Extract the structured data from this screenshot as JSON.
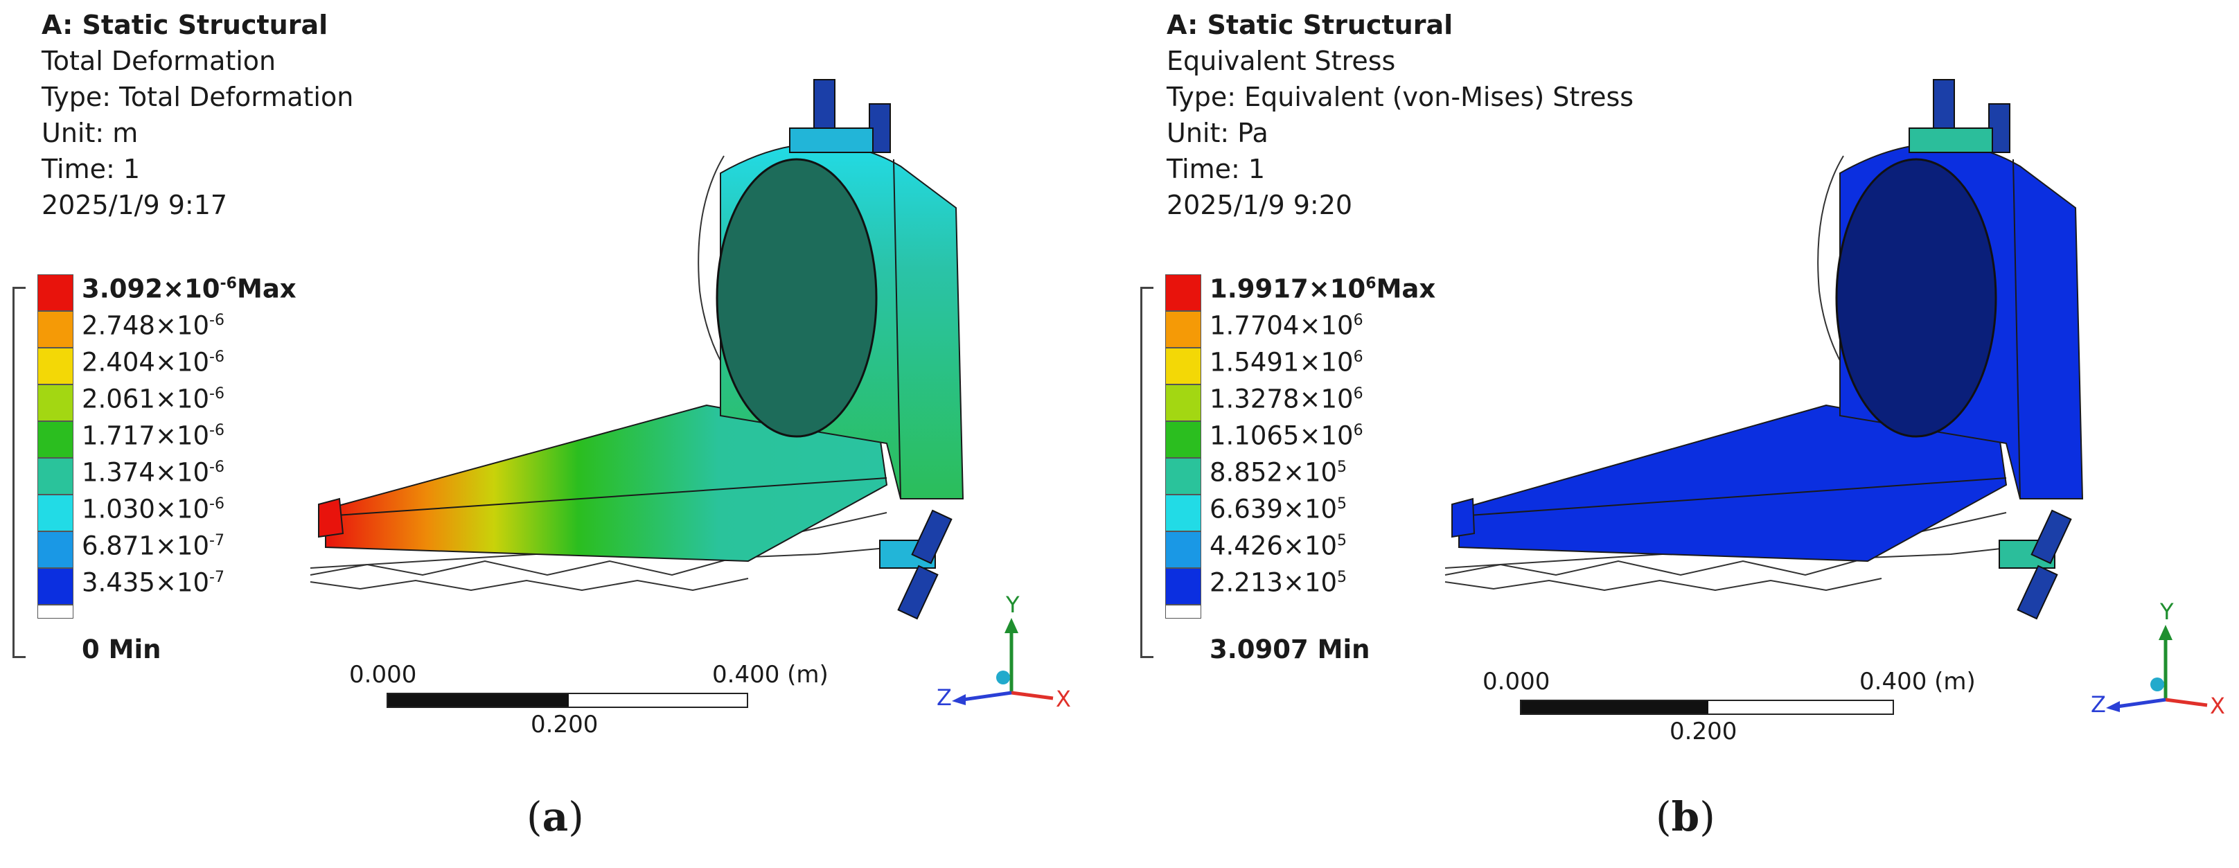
{
  "panels": [
    {
      "id": "a",
      "header": {
        "title": "A: Static Structural",
        "result": "Total Deformation",
        "type": "Type: Total Deformation",
        "unit": "Unit: m",
        "time": "Time: 1",
        "datetime": "2025/1/9 9:17"
      },
      "legend": {
        "max": {
          "mant": "3.092",
          "base": "×10",
          "exp": "-6",
          "suffix": "Max"
        },
        "levels": [
          {
            "mant": "2.748",
            "base": "×10",
            "exp": "-6"
          },
          {
            "mant": "2.404",
            "base": "×10",
            "exp": "-6"
          },
          {
            "mant": "2.061",
            "base": "×10",
            "exp": "-6"
          },
          {
            "mant": "1.717",
            "base": "×10",
            "exp": "-6"
          },
          {
            "mant": "1.374",
            "base": "×10",
            "exp": "-6"
          },
          {
            "mant": "1.030",
            "base": "×10",
            "exp": "-6"
          },
          {
            "mant": "6.871",
            "base": "×10",
            "exp": "-7"
          },
          {
            "mant": "3.435",
            "base": "×10",
            "exp": "-7"
          }
        ],
        "min": "0 Min"
      },
      "scale": {
        "left": "0.000",
        "mid": "0.200",
        "right": "0.400 (m)"
      },
      "caption": "a"
    },
    {
      "id": "b",
      "header": {
        "title": "A: Static Structural",
        "result": "Equivalent Stress",
        "type": "Type: Equivalent (von-Mises) Stress",
        "unit": "Unit: Pa",
        "time": "Time: 1",
        "datetime": "2025/1/9 9:20"
      },
      "legend": {
        "max": {
          "mant": "1.9917",
          "base": "×10",
          "exp": "6",
          "suffix": "Max"
        },
        "levels": [
          {
            "mant": "1.7704",
            "base": "×10",
            "exp": "6"
          },
          {
            "mant": "1.5491",
            "base": "×10",
            "exp": "6"
          },
          {
            "mant": "1.3278",
            "base": "×10",
            "exp": "6"
          },
          {
            "mant": "1.1065",
            "base": "×10",
            "exp": "6"
          },
          {
            "mant": "8.852",
            "base": "×10",
            "exp": "5"
          },
          {
            "mant": "6.639",
            "base": "×10",
            "exp": "5"
          },
          {
            "mant": "4.426",
            "base": "×10",
            "exp": "5"
          },
          {
            "mant": "2.213",
            "base": "×10",
            "exp": "5"
          }
        ],
        "min": "3.0907 Min"
      },
      "scale": {
        "left": "0.000",
        "mid": "0.200",
        "right": "0.400 (m)"
      },
      "caption": "b"
    }
  ],
  "legend_colors": [
    "#e8130c",
    "#f59a06",
    "#f3d806",
    "#a3d712",
    "#2bbe1f",
    "#2ac39b",
    "#22dbe6",
    "#1a98e5",
    "#0b2fe0",
    "#ffffff"
  ],
  "axis_labels": {
    "x": "X",
    "y": "Y",
    "z": "Z"
  },
  "axis_colors": {
    "x": "#e0302a",
    "y": "#1f8f2f",
    "z": "#2a3fd6"
  },
  "icons": [
    "triad-axis-icon"
  ]
}
